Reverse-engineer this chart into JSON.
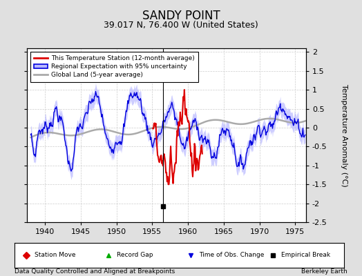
{
  "title": "SANDY POINT",
  "subtitle": "39.017 N, 76.400 W (United States)",
  "xlabel_left": "Data Quality Controlled and Aligned at Breakpoints",
  "xlabel_right": "Berkeley Earth",
  "ylabel": "Temperature Anomaly (°C)",
  "xlim": [
    1937.5,
    1976.5
  ],
  "ylim": [
    -2.5,
    2.1
  ],
  "yticks": [
    -2.5,
    -2,
    -1.5,
    -1,
    -0.5,
    0,
    0.5,
    1,
    1.5,
    2
  ],
  "xticks": [
    1940,
    1945,
    1950,
    1955,
    1960,
    1965,
    1970,
    1975
  ],
  "background_color": "#e0e0e0",
  "plot_bg_color": "#ffffff",
  "regional_line_color": "#0000dd",
  "regional_fill_color": "#b8b8ff",
  "station_line_color": "#dd0000",
  "global_line_color": "#aaaaaa",
  "vertical_line_x": 1956.5,
  "empirical_break_x": 1956.5,
  "station_start": 1955.0,
  "station_end": 1962.0
}
